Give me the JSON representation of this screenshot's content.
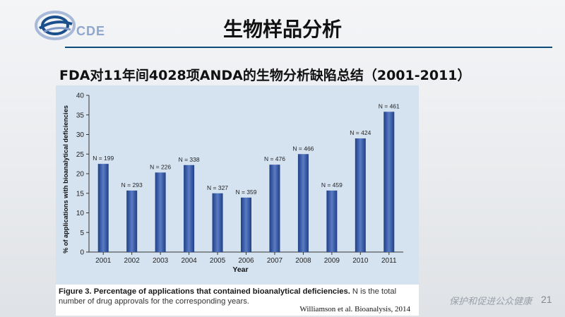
{
  "header": {
    "logo_text": "CDE",
    "title": "生物样品分析"
  },
  "subtitle": "FDA对11年间4028项ANDA的生物分析缺陷总结（2001-2011）",
  "chart_data": {
    "type": "bar",
    "title": "",
    "ylabel": "% of applications with bioanalytical deficiencies",
    "xlabel": "Year",
    "ylim": [
      0,
      40
    ],
    "yticks": [
      0,
      5,
      10,
      15,
      20,
      25,
      30,
      35,
      40
    ],
    "categories": [
      "2001",
      "2002",
      "2003",
      "2004",
      "2005",
      "2006",
      "2007",
      "2008",
      "2009",
      "2010",
      "2011"
    ],
    "values": [
      22.5,
      15.7,
      20.3,
      22.2,
      15.0,
      13.9,
      22.3,
      25.0,
      15.7,
      29.0,
      35.8
    ],
    "bar_labels": [
      "N = 199",
      "N = 293",
      "N = 226",
      "N = 338",
      "N = 327",
      "N = 359",
      "N = 476",
      "N = 466",
      "N = 459",
      "N = 424",
      "N = 461"
    ],
    "grid": false,
    "bar_color_dark": "#1f3f86",
    "bar_color_light": "#5a7cc4",
    "background": "#d5e3f1"
  },
  "figure": {
    "caption_bold": "Figure 3. Percentage of applications that contained bioanalytical deficiencies.",
    "caption_rest": " N is the total number of drug approvals for the corresponding years.",
    "citation": "Williamson et al.  Bioanalysis, 2014"
  },
  "footer": {
    "slogan": "保护和促进公众健康",
    "page": "21"
  }
}
